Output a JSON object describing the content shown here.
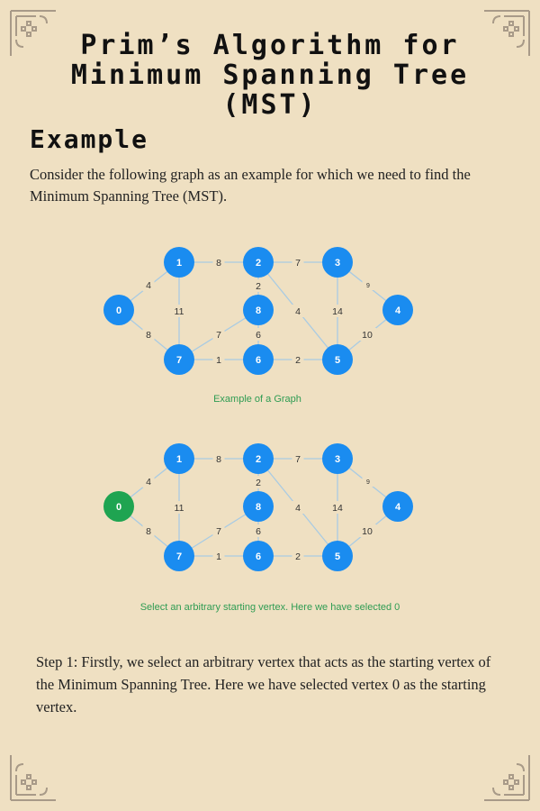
{
  "title": "Prim’s Algorithm for Minimum Spanning Tree (MST)",
  "section_heading": "Example",
  "intro_text": "Consider the following graph as an example for which we need to find the Minimum Spanning Tree (MST).",
  "graph_1": {
    "caption": "Example of  a Graph",
    "highlighted_vertices": []
  },
  "graph_2": {
    "caption": "Select an arbitrary starting vertex. Here we have selected 0",
    "highlighted_vertices": [
      "0"
    ]
  },
  "vertices": [
    "0",
    "1",
    "2",
    "3",
    "4",
    "5",
    "6",
    "7",
    "8"
  ],
  "edges": [
    {
      "from": "0",
      "to": "1",
      "weight": "4"
    },
    {
      "from": "0",
      "to": "7",
      "weight": "8"
    },
    {
      "from": "1",
      "to": "2",
      "weight": "8"
    },
    {
      "from": "1",
      "to": "7",
      "weight": "11"
    },
    {
      "from": "2",
      "to": "3",
      "weight": "7"
    },
    {
      "from": "2",
      "to": "8",
      "weight": "2"
    },
    {
      "from": "2",
      "to": "5",
      "weight": "4"
    },
    {
      "from": "3",
      "to": "4",
      "weight": "9"
    },
    {
      "from": "3",
      "to": "5",
      "weight": "14"
    },
    {
      "from": "4",
      "to": "5",
      "weight": "10"
    },
    {
      "from": "5",
      "to": "6",
      "weight": "2"
    },
    {
      "from": "6",
      "to": "7",
      "weight": "1"
    },
    {
      "from": "6",
      "to": "8",
      "weight": "6"
    },
    {
      "from": "7",
      "to": "8",
      "weight": "7"
    }
  ],
  "colors": {
    "background": "#efe0c2",
    "vertex": "#1a8cf0",
    "selected_vertex": "#1fa451",
    "edge": "#a9cbe3",
    "weight_text": "#333333",
    "caption": "#2f9c53",
    "ornament": "#a89a88"
  },
  "step_text": "Step 1: Firstly, we select an arbitrary vertex that acts as the starting vertex of the Minimum Spanning Tree. Here we have selected vertex 0 as the starting vertex."
}
